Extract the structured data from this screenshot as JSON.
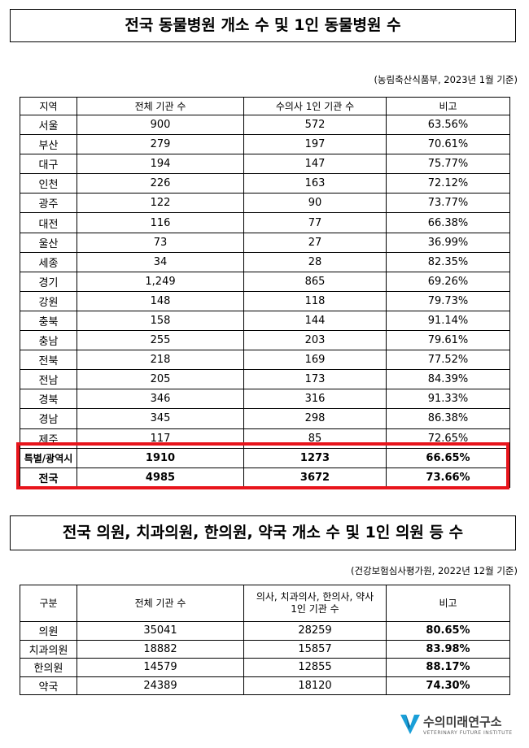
{
  "table1": {
    "title": "전국 동물병원 개소 수 및 1인 동물병원 수",
    "source": "(농림축산식품부, 2023년 1월 기준)",
    "headers": [
      "지역",
      "전체 기관 수",
      "수의사 1인 기관 수",
      "비고"
    ],
    "rows": [
      [
        "서울",
        "900",
        "572",
        "63.56%"
      ],
      [
        "부산",
        "279",
        "197",
        "70.61%"
      ],
      [
        "대구",
        "194",
        "147",
        "75.77%"
      ],
      [
        "인천",
        "226",
        "163",
        "72.12%"
      ],
      [
        "광주",
        "122",
        "90",
        "73.77%"
      ],
      [
        "대전",
        "116",
        "77",
        "66.38%"
      ],
      [
        "울산",
        "73",
        "27",
        "36.99%"
      ],
      [
        "세종",
        "34",
        "28",
        "82.35%"
      ],
      [
        "경기",
        "1,249",
        "865",
        "69.26%"
      ],
      [
        "강원",
        "148",
        "118",
        "79.73%"
      ],
      [
        "충북",
        "158",
        "144",
        "91.14%"
      ],
      [
        "충남",
        "255",
        "203",
        "79.61%"
      ],
      [
        "전북",
        "218",
        "169",
        "77.52%"
      ],
      [
        "전남",
        "205",
        "173",
        "84.39%"
      ],
      [
        "경북",
        "346",
        "316",
        "91.33%"
      ],
      [
        "경남",
        "345",
        "298",
        "86.38%"
      ],
      [
        "제주",
        "117",
        "85",
        "72.65%"
      ]
    ],
    "summary_rows": [
      [
        "특별/광역시",
        "1910",
        "1273",
        "66.65%"
      ],
      [
        "전국",
        "4985",
        "3672",
        "73.66%"
      ]
    ],
    "highlight_color": "#e8141b"
  },
  "table2": {
    "title": "전국 의원, 치과의원, 한의원, 약국 개소 수 및 1인 의원 등 수",
    "source": "(건강보험심사평가원, 2022년 12월 기준)",
    "headers": [
      "구분",
      "전체 기관 수",
      "의사, 치과의사, 한의사, 약사\n1인 기관 수",
      "비고"
    ],
    "rows": [
      [
        "의원",
        "35041",
        "28259",
        "80.65%"
      ],
      [
        "치과의원",
        "18882",
        "15857",
        "83.98%"
      ],
      [
        "한의원",
        "14579",
        "12855",
        "88.17%"
      ],
      [
        "약국",
        "24389",
        "18120",
        "74.30%"
      ]
    ]
  },
  "logo": {
    "name": "수의미래연구소",
    "subtitle": "VETERINARY FUTURE INSTITUTE",
    "color": "#1a9fd8"
  }
}
